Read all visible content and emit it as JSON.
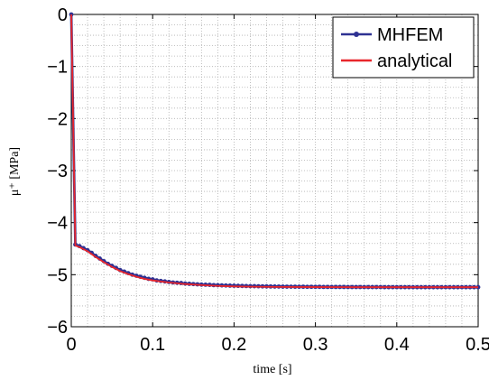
{
  "chart_data": {
    "type": "line",
    "xlabel": "time [s]",
    "ylabel": "μ⁺ [MPa]",
    "xlim": [
      0,
      0.5
    ],
    "ylim": [
      -6,
      0
    ],
    "x_ticks": [
      0,
      0.1,
      0.2,
      0.3,
      0.4,
      0.5
    ],
    "x_tick_labels": [
      "0",
      "0.1",
      "0.2",
      "0.3",
      "0.4",
      "0.5"
    ],
    "y_ticks": [
      0,
      -1,
      -2,
      -3,
      -4,
      -5,
      -6
    ],
    "y_tick_labels": [
      "0",
      "−1",
      "−2",
      "−3",
      "−4",
      "−5",
      "−6"
    ],
    "grid": true,
    "legend_position": "top-right",
    "series": [
      {
        "name": "MHFEM",
        "color": "#2e3192",
        "marker": "dot",
        "x": [
          0,
          0.005,
          0.01,
          0.015,
          0.02,
          0.025,
          0.03,
          0.035,
          0.04,
          0.045,
          0.05,
          0.055,
          0.06,
          0.065,
          0.07,
          0.075,
          0.08,
          0.085,
          0.09,
          0.095,
          0.1,
          0.105,
          0.11,
          0.115,
          0.12,
          0.125,
          0.13,
          0.135,
          0.14,
          0.145,
          0.15,
          0.155,
          0.16,
          0.165,
          0.17,
          0.175,
          0.18,
          0.185,
          0.19,
          0.195,
          0.2,
          0.205,
          0.21,
          0.215,
          0.22,
          0.225,
          0.23,
          0.235,
          0.24,
          0.245,
          0.25,
          0.255,
          0.26,
          0.265,
          0.27,
          0.275,
          0.28,
          0.285,
          0.29,
          0.295,
          0.3,
          0.305,
          0.31,
          0.315,
          0.32,
          0.325,
          0.33,
          0.335,
          0.34,
          0.345,
          0.35,
          0.355,
          0.36,
          0.365,
          0.37,
          0.375,
          0.38,
          0.385,
          0.39,
          0.395,
          0.4,
          0.405,
          0.41,
          0.415,
          0.42,
          0.425,
          0.43,
          0.435,
          0.44,
          0.445,
          0.45,
          0.455,
          0.46,
          0.465,
          0.47,
          0.475,
          0.48,
          0.485,
          0.49,
          0.495,
          0.5
        ],
        "y": [
          0,
          -4.42,
          -4.45,
          -4.49,
          -4.53,
          -4.58,
          -4.64,
          -4.69,
          -4.74,
          -4.79,
          -4.83,
          -4.87,
          -4.91,
          -4.94,
          -4.97,
          -5.0,
          -5.02,
          -5.04,
          -5.06,
          -5.08,
          -5.09,
          -5.11,
          -5.12,
          -5.13,
          -5.14,
          -5.15,
          -5.155,
          -5.16,
          -5.17,
          -5.175,
          -5.18,
          -5.185,
          -5.19,
          -5.192,
          -5.195,
          -5.2,
          -5.202,
          -5.205,
          -5.207,
          -5.21,
          -5.212,
          -5.214,
          -5.216,
          -5.218,
          -5.22,
          -5.221,
          -5.222,
          -5.224,
          -5.225,
          -5.226,
          -5.227,
          -5.228,
          -5.229,
          -5.23,
          -5.23,
          -5.231,
          -5.232,
          -5.232,
          -5.233,
          -5.233,
          -5.234,
          -5.234,
          -5.235,
          -5.235,
          -5.235,
          -5.236,
          -5.236,
          -5.236,
          -5.237,
          -5.237,
          -5.237,
          -5.237,
          -5.238,
          -5.238,
          -5.238,
          -5.238,
          -5.238,
          -5.239,
          -5.239,
          -5.239,
          -5.239,
          -5.239,
          -5.239,
          -5.239,
          -5.24,
          -5.24,
          -5.24,
          -5.24,
          -5.24,
          -5.24,
          -5.24,
          -5.24,
          -5.24,
          -5.24,
          -5.24,
          -5.24,
          -5.24,
          -5.24,
          -5.24,
          -5.24,
          -5.24
        ]
      },
      {
        "name": "analytical",
        "color": "#e8262b",
        "marker": "none",
        "x": [
          0,
          0.005,
          0.01,
          0.02,
          0.03,
          0.04,
          0.05,
          0.06,
          0.07,
          0.08,
          0.09,
          0.1,
          0.12,
          0.14,
          0.16,
          0.18,
          0.2,
          0.22,
          0.25,
          0.3,
          0.35,
          0.4,
          0.45,
          0.5
        ],
        "y": [
          0,
          -4.44,
          -4.47,
          -4.55,
          -4.66,
          -4.76,
          -4.85,
          -4.93,
          -4.99,
          -5.04,
          -5.08,
          -5.11,
          -5.15,
          -5.18,
          -5.2,
          -5.215,
          -5.225,
          -5.23,
          -5.235,
          -5.238,
          -5.24,
          -5.24,
          -5.24,
          -5.24
        ]
      }
    ]
  }
}
